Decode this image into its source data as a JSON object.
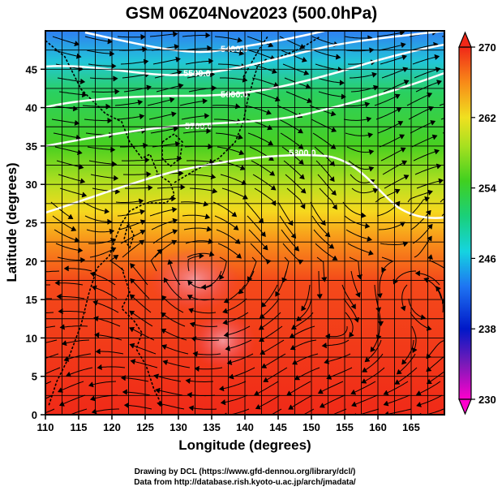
{
  "chart_data": {
    "type": "heatmap",
    "title": "GSM 06Z04Nov2023 (500.0hPa)",
    "xlabel": "Longitude (degrees)",
    "ylabel": "Latitude (degrees)",
    "xlim": [
      110,
      170
    ],
    "ylim": [
      0,
      50
    ],
    "x_ticks": [
      110,
      115,
      120,
      125,
      130,
      135,
      140,
      145,
      150,
      155,
      160,
      165
    ],
    "y_ticks": [
      0,
      5,
      10,
      15,
      20,
      25,
      30,
      35,
      40,
      45
    ],
    "grid": true,
    "colorbar": {
      "min": 230,
      "max": 270,
      "ticks": [
        230,
        238,
        246,
        254,
        262,
        270
      ],
      "placement": "right"
    },
    "temperature_field": {
      "latitudes": [
        50,
        45,
        40,
        35,
        30,
        25,
        20,
        15,
        10,
        5,
        0
      ],
      "values_by_latitude": [
        244,
        250,
        254,
        258,
        262,
        265,
        268,
        268,
        267,
        266,
        266
      ]
    },
    "height_contours": [
      {
        "label": "5400.0",
        "level": 5400
      },
      {
        "label": "5500.0",
        "level": 5500
      },
      {
        "label": "5600.0",
        "level": 5600
      },
      {
        "label": "5700.0",
        "level": 5700
      },
      {
        "label": "5800.0",
        "level": 5800
      }
    ],
    "overlay": "streamlines"
  },
  "credits": {
    "line1": "Drawing by DCL (https://www.gfd-dennou.org/library/dcl/)",
    "line2": "Data from http://database.rish.kyoto-u.ac.jp/arch/jmadata/"
  }
}
